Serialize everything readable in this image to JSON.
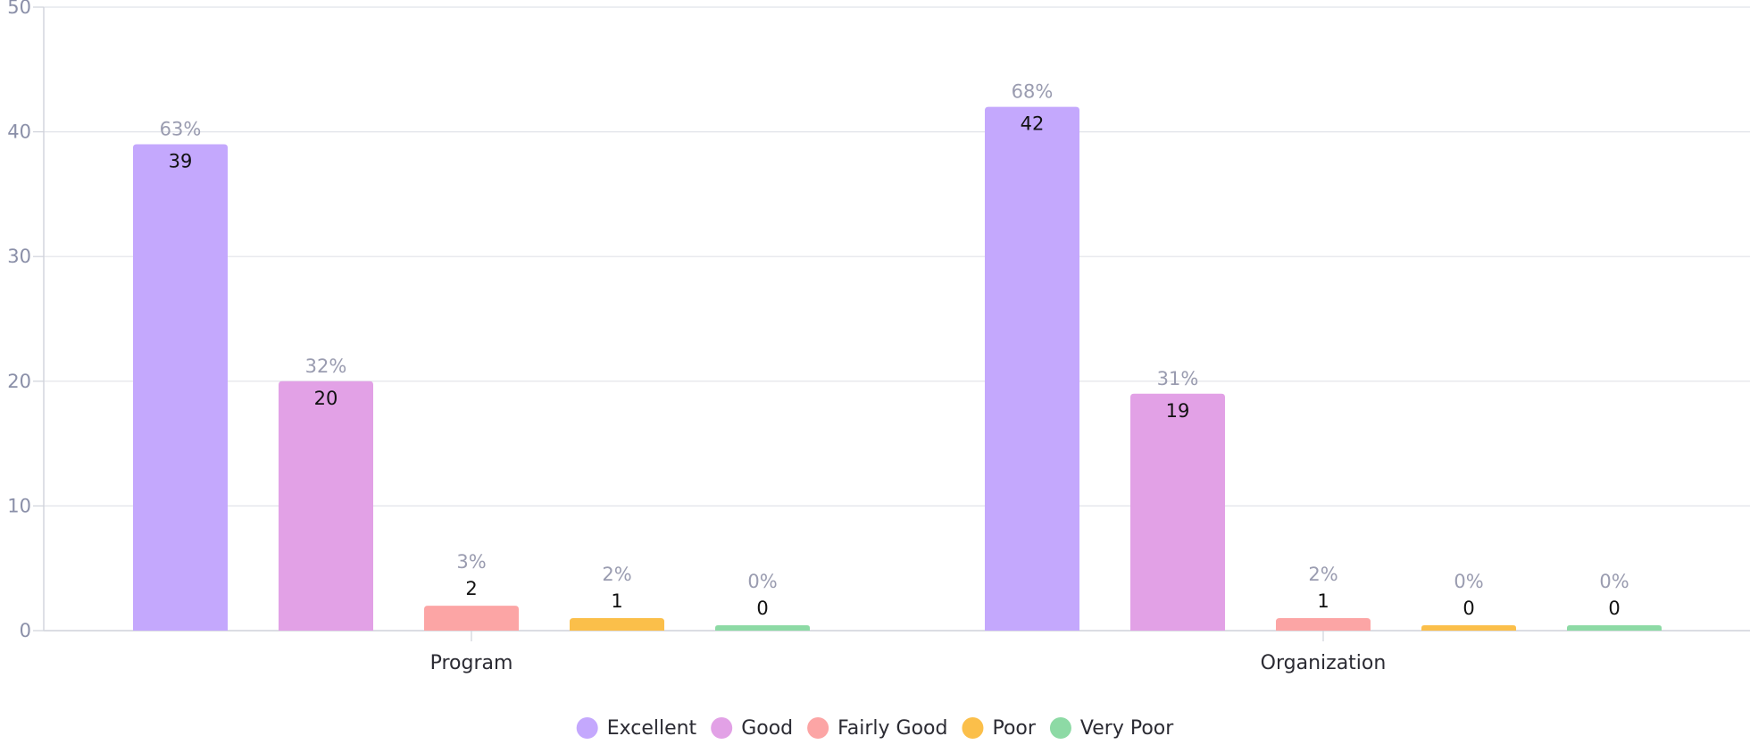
{
  "chart_data": {
    "type": "bar",
    "categories": [
      "Program",
      "Organization"
    ],
    "series": [
      {
        "name": "Excellent",
        "values": [
          39,
          42
        ],
        "percents": [
          "63%",
          "68%"
        ],
        "color": "#c4a8fd"
      },
      {
        "name": "Good",
        "values": [
          20,
          19
        ],
        "percents": [
          "32%",
          "31%"
        ],
        "color": "#e2a1e6"
      },
      {
        "name": "Fairly Good",
        "values": [
          2,
          1
        ],
        "percents": [
          "3%",
          "2%"
        ],
        "color": "#fca5a5"
      },
      {
        "name": "Poor",
        "values": [
          1,
          0
        ],
        "percents": [
          "2%",
          "0%"
        ],
        "color": "#fbbf4a"
      },
      {
        "name": "Very Poor",
        "values": [
          0,
          0
        ],
        "percents": [
          "0%",
          "0%"
        ],
        "color": "#8ddaa5"
      }
    ],
    "ylim": [
      0,
      50
    ],
    "yticks": [
      0,
      10,
      20,
      30,
      40,
      50
    ],
    "grid": true,
    "legend": "bottom-center",
    "title": "",
    "xlabel": "",
    "ylabel": ""
  }
}
